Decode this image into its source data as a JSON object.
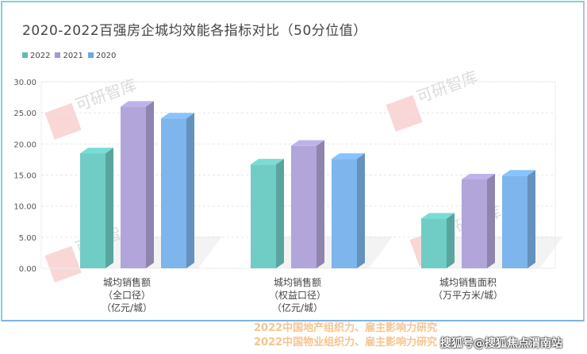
{
  "chart_data": {
    "type": "bar",
    "title": "2020-2022百强房企城均效能各指标对比（50分位值）",
    "categories": [
      [
        "城均销售额",
        "（全口径）",
        "（亿元/城）"
      ],
      [
        "城均销售额",
        "（权益口径）",
        "（亿元/城）"
      ],
      [
        "城均销售面积",
        "（万平方米/城）"
      ]
    ],
    "series": [
      {
        "name": "2022",
        "values": [
          18.5,
          16.7,
          8.0
        ],
        "color": "#6fcdc6"
      },
      {
        "name": "2021",
        "values": [
          26.0,
          19.7,
          14.3
        ],
        "color": "#b1a5da"
      },
      {
        "name": "2020",
        "values": [
          24.1,
          17.6,
          14.9
        ],
        "color": "#7db5ec"
      }
    ],
    "yticks": [
      "0.00",
      "5.00",
      "10.00",
      "15.00",
      "20.00",
      "25.00",
      "30.00"
    ],
    "ylim": [
      0,
      30
    ],
    "grid": true,
    "legend": "top-left",
    "style": "3d-column"
  },
  "watermark": "可研智库",
  "footer": {
    "line1": "2022中国地产组织力、雇主影响力研究",
    "line2": "2022中国物业组织力、雇主影响力研究",
    "source": "搜狐号@搜狐焦点渭南站"
  }
}
